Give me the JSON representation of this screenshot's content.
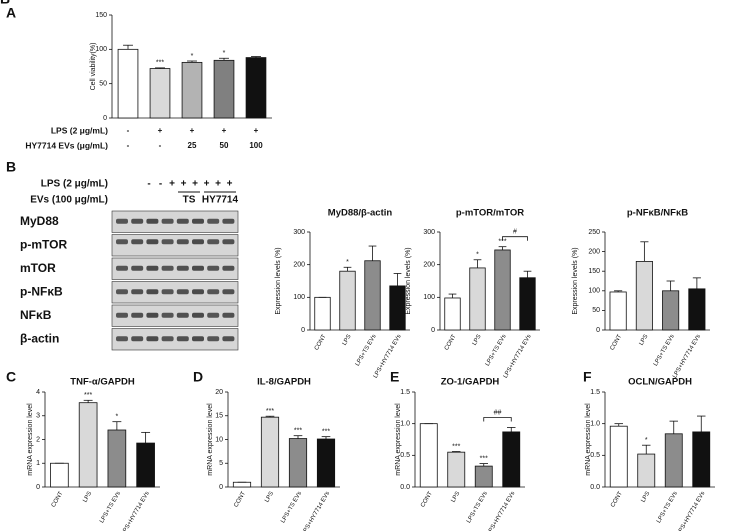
{
  "chart_data": [
    {
      "type": "bar",
      "panel": "A",
      "ylabel": "Cell viability(%)",
      "values": [
        100,
        72,
        81,
        84,
        88
      ],
      "errors": [
        6,
        1,
        2,
        3,
        1.5
      ],
      "annotations": [
        null,
        "***",
        "*",
        "*",
        null
      ],
      "colors": [
        "#ffffff",
        "#d9d9d9",
        "#b3b3b3",
        "#808080",
        "#111111"
      ],
      "ylim": [
        0,
        150
      ],
      "yticks": [
        0,
        50,
        100,
        150
      ],
      "rows": [
        {
          "label": "LPS (2 μg/mL)",
          "cells": [
            "-",
            "+",
            "+",
            "+",
            "+"
          ]
        },
        {
          "label": "HY7714 EVs (μg/mL)",
          "cells": [
            "-",
            "-",
            "25",
            "50",
            "100"
          ]
        }
      ]
    },
    {
      "type": "bar",
      "panel": "B",
      "title": "MyD88/β-actin",
      "ylabel": "Expression levels (%)",
      "categories": [
        "CONT",
        "LPS",
        "LPS+TS EVs",
        "LPS+HY7714 EVs"
      ],
      "values": [
        100,
        180,
        212,
        135
      ],
      "errors": [
        0,
        12,
        45,
        38
      ],
      "annotations": [
        null,
        "*",
        null,
        null
      ],
      "colors": [
        "#ffffff",
        "#d9d9d9",
        "#8c8c8c",
        "#111111"
      ],
      "ylim": [
        0,
        300
      ],
      "yticks": [
        0,
        100,
        200,
        300
      ]
    },
    {
      "type": "bar",
      "title": "p-mTOR/mTOR",
      "ylabel": "Expression levels (%)",
      "categories": [
        "CONT",
        "LPS",
        "LPS+TS EVs",
        "LPS+HY7714 EVs"
      ],
      "values": [
        98,
        190,
        245,
        160
      ],
      "errors": [
        12,
        25,
        10,
        20
      ],
      "annotations": [
        null,
        "*",
        "***",
        null
      ],
      "bracket_label": "#",
      "colors": [
        "#ffffff",
        "#d9d9d9",
        "#8c8c8c",
        "#111111"
      ],
      "ylim": [
        0,
        300
      ],
      "yticks": [
        0,
        100,
        200,
        300
      ]
    },
    {
      "type": "bar",
      "title": "p-NFκB/NFκB",
      "ylabel": "Expression levels (%)",
      "categories": [
        "CONT",
        "LPS",
        "LPS+TS EVs",
        "LPS+HY7714 EVs"
      ],
      "values": [
        97,
        175,
        100,
        105
      ],
      "errors": [
        3,
        50,
        25,
        28
      ],
      "annotations": [
        null,
        null,
        null,
        null
      ],
      "colors": [
        "#ffffff",
        "#d9d9d9",
        "#8c8c8c",
        "#111111"
      ],
      "ylim": [
        0,
        250
      ],
      "yticks": [
        0,
        50,
        100,
        150,
        200,
        250
      ]
    },
    {
      "type": "bar",
      "panel": "C",
      "title": "TNF-α/GAPDH",
      "ylabel": "mRNA expression level",
      "categories": [
        "CONT",
        "LPS",
        "LPS+TS EVs",
        "LPS+HY7714 EVs"
      ],
      "values": [
        1,
        3.55,
        2.4,
        1.85
      ],
      "errors": [
        0,
        0.1,
        0.35,
        0.45
      ],
      "annotations": [
        null,
        "***",
        "*",
        null
      ],
      "colors": [
        "#ffffff",
        "#d9d9d9",
        "#8c8c8c",
        "#111111"
      ],
      "ylim": [
        0,
        4
      ],
      "yticks": [
        0,
        1,
        2,
        3,
        4
      ]
    },
    {
      "type": "bar",
      "panel": "D",
      "title": "IL-8/GAPDH",
      "ylabel": "mRNA expression level",
      "categories": [
        "CONT",
        "LPS",
        "LPS+TS EVs",
        "LPS+HY7714 EVs"
      ],
      "values": [
        1,
        14.7,
        10.2,
        10.1
      ],
      "errors": [
        0,
        0.2,
        0.6,
        0.5
      ],
      "annotations": [
        null,
        "***",
        "***",
        "***"
      ],
      "colors": [
        "#ffffff",
        "#d9d9d9",
        "#8c8c8c",
        "#111111"
      ],
      "ylim": [
        0,
        20
      ],
      "yticks": [
        0,
        5,
        10,
        15,
        20
      ]
    },
    {
      "type": "bar",
      "panel": "E",
      "title": "ZO-1/GAPDH",
      "ylabel": "mRNA expression level",
      "categories": [
        "CONT",
        "LPS",
        "LPS+TS EVs",
        "LPS+HY7714 EVs"
      ],
      "values": [
        1.0,
        0.55,
        0.33,
        0.87
      ],
      "errors": [
        0,
        0.01,
        0.04,
        0.07
      ],
      "annotations": [
        null,
        "***",
        "***",
        null
      ],
      "bracket_label": "##",
      "colors": [
        "#ffffff",
        "#d9d9d9",
        "#8c8c8c",
        "#111111"
      ],
      "ylim": [
        0,
        1.5
      ],
      "yticks": [
        {
          "value": 0,
          "label": "0.0"
        },
        0.5,
        {
          "value": 1,
          "label": "1.0"
        },
        1.5
      ]
    },
    {
      "type": "bar",
      "panel": "F",
      "title": "OCLN/GAPDH",
      "ylabel": "mRNA expression level",
      "categories": [
        "CONT",
        "LPS",
        "LPS+TS EVs",
        "LPS+HY7714 EVs"
      ],
      "values": [
        0.96,
        0.52,
        0.84,
        0.87
      ],
      "errors": [
        0.04,
        0.14,
        0.2,
        0.25
      ],
      "annotations": [
        null,
        "*",
        null,
        null
      ],
      "colors": [
        "#ffffff",
        "#d9d9d9",
        "#8c8c8c",
        "#111111"
      ],
      "ylim": [
        0,
        1.5
      ],
      "yticks": [
        {
          "value": 0,
          "label": "0.0"
        },
        0.5,
        {
          "value": 1,
          "label": "1.0"
        },
        1.5
      ]
    }
  ],
  "blot": {
    "lps_label": "LPS (2 μg/mL)",
    "lps_signs": [
      "-",
      "-",
      "+",
      "+",
      "+",
      "+",
      "+",
      "+"
    ],
    "evs_label": "EVs (100 μg/mL)",
    "evs_groups": [
      "TS",
      "HY7714"
    ],
    "rows": [
      "MyD88",
      "p-mTOR",
      "mTOR",
      "p-NFκB",
      "NFκB",
      "β-actin"
    ]
  }
}
